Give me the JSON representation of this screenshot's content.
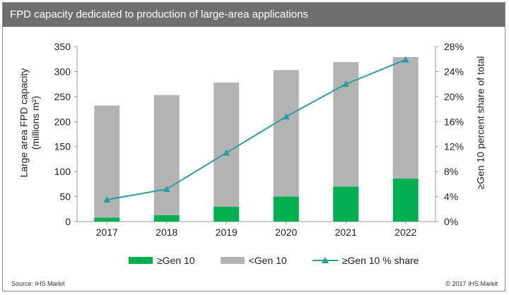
{
  "title": "FPD capacity dedicated to production of large-area applications",
  "footer": {
    "source": "Source: IHS Markit",
    "copyright": "© 2017 IHS Markit"
  },
  "legend": {
    "gen10_label": "≥Gen 10",
    "lt_gen10_label": "<Gen 10",
    "share_label": "≥Gen 10 % share"
  },
  "axes": {
    "ylabel_line1": "Large area FPD capacity",
    "ylabel_line2": "(millions m²)",
    "y2label": "≥Gen 10 percent share of total"
  },
  "colors": {
    "gen10": "#00b050",
    "lt_gen10": "#b3b3b3",
    "share_line": "#2a9d9d"
  },
  "chart_data": {
    "type": "bar",
    "stacked": true,
    "categories": [
      "2017",
      "2018",
      "2019",
      "2020",
      "2021",
      "2022"
    ],
    "series": [
      {
        "name": "≥Gen 10",
        "values": [
          8,
          13,
          30,
          50,
          70,
          86
        ]
      },
      {
        "name": "<Gen 10",
        "values": [
          224,
          240,
          248,
          253,
          249,
          243
        ]
      }
    ],
    "secondary_series": {
      "name": "≥Gen 10 % share",
      "type": "line",
      "values": [
        3.5,
        5.2,
        11.0,
        16.8,
        22.0,
        25.9
      ]
    },
    "ylim": [
      0,
      350
    ],
    "yticks": [
      0,
      50,
      100,
      150,
      200,
      250,
      300,
      350
    ],
    "y2lim": [
      0,
      28
    ],
    "y2ticks": [
      "0%",
      "4%",
      "8%",
      "12%",
      "16%",
      "20%",
      "24%",
      "28%"
    ],
    "grid": false,
    "legend_position": "bottom"
  }
}
